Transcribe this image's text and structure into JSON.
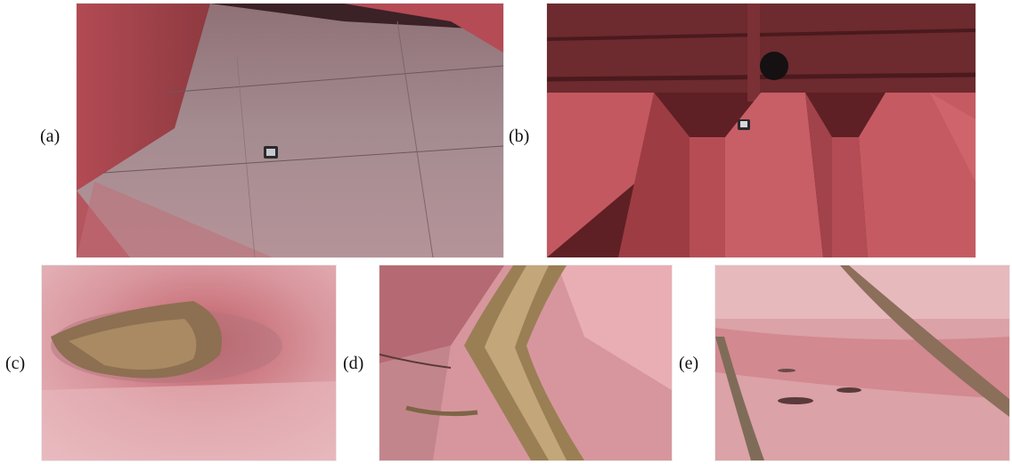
{
  "figure": {
    "panels": [
      {
        "label": "(a)",
        "content": "robot-on-cargo-hold-floor-photo"
      },
      {
        "label": "(b)",
        "content": "robot-on-corrugated-bulkhead-photo"
      },
      {
        "label": "(c)",
        "content": "corroded-pit-closeup-photo"
      },
      {
        "label": "(d)",
        "content": "corroded-weld-seam-closeup-photo"
      },
      {
        "label": "(e)",
        "content": "coating-damage-closeup-photo"
      }
    ]
  },
  "colors": {
    "hull_red": "#c4525a",
    "dark_red": "#7e2a2e",
    "grey_deck": "#a58f93",
    "rust": "#9a7a4a"
  }
}
